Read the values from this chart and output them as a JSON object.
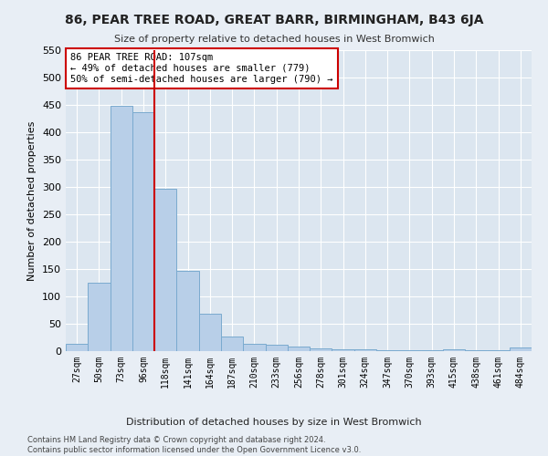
{
  "title": "86, PEAR TREE ROAD, GREAT BARR, BIRMINGHAM, B43 6JA",
  "subtitle": "Size of property relative to detached houses in West Bromwich",
  "xlabel": "Distribution of detached houses by size in West Bromwich",
  "ylabel": "Number of detached properties",
  "categories": [
    "27sqm",
    "50sqm",
    "73sqm",
    "96sqm",
    "118sqm",
    "141sqm",
    "164sqm",
    "187sqm",
    "210sqm",
    "233sqm",
    "256sqm",
    "278sqm",
    "301sqm",
    "324sqm",
    "347sqm",
    "370sqm",
    "393sqm",
    "415sqm",
    "438sqm",
    "461sqm",
    "484sqm"
  ],
  "values": [
    13,
    125,
    448,
    437,
    297,
    146,
    69,
    27,
    13,
    11,
    8,
    5,
    3,
    3,
    2,
    2,
    2,
    4,
    2,
    1,
    6
  ],
  "bar_color": "#b8cfe8",
  "bar_edge_color": "#7aaacf",
  "vline_color": "#cc0000",
  "vline_x": 3.5,
  "annotation_text": "86 PEAR TREE ROAD: 107sqm\n← 49% of detached houses are smaller (779)\n50% of semi-detached houses are larger (790) →",
  "annotation_box_color": "#ffffff",
  "annotation_box_edge": "#cc0000",
  "footer": "Contains HM Land Registry data © Crown copyright and database right 2024.\nContains public sector information licensed under the Open Government Licence v3.0.",
  "bg_color": "#e8eef5",
  "plot_bg_color": "#dce6f0",
  "ylim": [
    0,
    550
  ],
  "yticks": [
    0,
    50,
    100,
    150,
    200,
    250,
    300,
    350,
    400,
    450,
    500,
    550
  ]
}
